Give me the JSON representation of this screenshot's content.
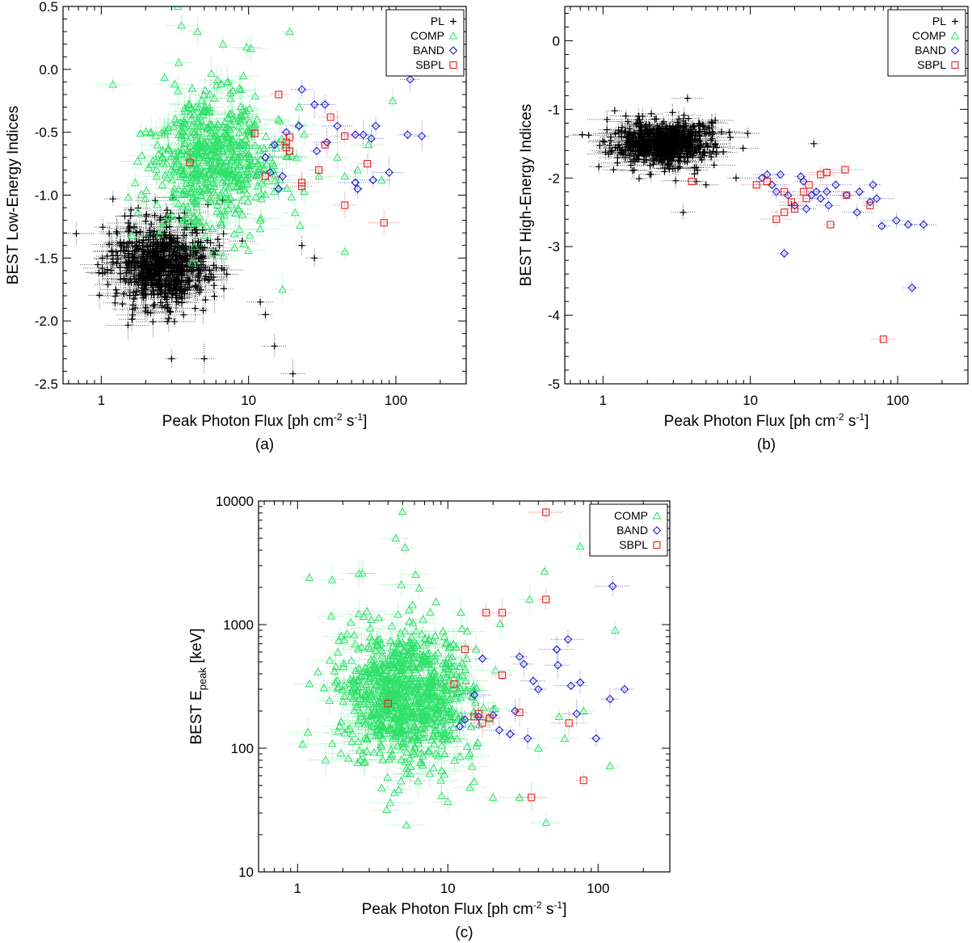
{
  "panels": [
    {
      "id": "a",
      "caption": "(a)",
      "xlabel": {
        "main": "Peak Photon Flux [ph cm",
        "sup1": "-2",
        "mid": " s",
        "sup2": "-1",
        "end": "]"
      },
      "ylabel": {
        "main": "BEST Low-Energy Indices",
        "sub": ""
      },
      "xscale": "log",
      "xlim": [
        0.55,
        300
      ],
      "yscale": "linear",
      "ylim": [
        -2.5,
        0.5
      ],
      "xticks": [
        {
          "v": 1,
          "label": "1"
        },
        {
          "v": 10,
          "label": "10"
        },
        {
          "v": 100,
          "label": "100"
        }
      ],
      "yticks": [
        {
          "v": 0.5,
          "label": "0.5"
        },
        {
          "v": 0.0,
          "label": "0.0"
        },
        {
          "v": -0.5,
          "label": "-0.5"
        },
        {
          "v": -1.0,
          "label": "-1.0"
        },
        {
          "v": -1.5,
          "label": "-1.5"
        },
        {
          "v": -2.0,
          "label": "-2.0"
        },
        {
          "v": -2.5,
          "label": "-2.5"
        }
      ],
      "legend": [
        "PL",
        "COMP",
        "BAND",
        "SBPL"
      ]
    },
    {
      "id": "b",
      "caption": "(b)",
      "xlabel": {
        "main": "Peak Photon Flux [ph cm",
        "sup1": "-2",
        "mid": " s",
        "sup2": "-1",
        "end": "]"
      },
      "ylabel": {
        "main": "BEST High-Energy Indices",
        "sub": ""
      },
      "xscale": "log",
      "xlim": [
        0.55,
        300
      ],
      "yscale": "linear",
      "ylim": [
        -5.0,
        0.5
      ],
      "xticks": [
        {
          "v": 1,
          "label": "1"
        },
        {
          "v": 10,
          "label": "10"
        },
        {
          "v": 100,
          "label": "100"
        }
      ],
      "yticks": [
        {
          "v": 0,
          "label": "0"
        },
        {
          "v": -1,
          "label": "-1"
        },
        {
          "v": -2,
          "label": "-2"
        },
        {
          "v": -3,
          "label": "-3"
        },
        {
          "v": -4,
          "label": "-4"
        },
        {
          "v": -5,
          "label": "-5"
        }
      ],
      "legend": [
        "PL",
        "COMP",
        "BAND",
        "SBPL"
      ]
    },
    {
      "id": "c",
      "caption": "(c)",
      "xlabel": {
        "main": "Peak Photon Flux [ph cm",
        "sup1": "-2",
        "mid": " s",
        "sup2": "-1",
        "end": "]"
      },
      "ylabel": {
        "main": "BEST E",
        "sub": "peak",
        "end": " [keV]"
      },
      "xscale": "log",
      "xlim": [
        0.55,
        300
      ],
      "yscale": "log",
      "ylim": [
        10,
        10000
      ],
      "xticks": [
        {
          "v": 1,
          "label": "1"
        },
        {
          "v": 10,
          "label": "10"
        },
        {
          "v": 100,
          "label": "100"
        }
      ],
      "yticks": [
        {
          "v": 10,
          "label": "10"
        },
        {
          "v": 100,
          "label": "100"
        },
        {
          "v": 1000,
          "label": "1000"
        },
        {
          "v": 10000,
          "label": "10000"
        }
      ],
      "legend": [
        "COMP",
        "BAND",
        "SBPL"
      ]
    }
  ],
  "legend_styles": {
    "PL": {
      "marker": "+",
      "color": "#000000"
    },
    "COMP": {
      "marker": "triangle",
      "color": "#2ee06a"
    },
    "BAND": {
      "marker": "diamond",
      "color": "#1a1ad0"
    },
    "SBPL": {
      "marker": "square",
      "color": "#e02020"
    }
  },
  "chart_data": [
    {
      "type": "scatter",
      "title": "(a)",
      "xlabel": "Peak Photon Flux [ph cm^-2 s^-1]",
      "ylabel": "BEST Low-Energy Indices",
      "xscale": "log",
      "xlim": [
        0.55,
        300
      ],
      "ylim": [
        -2.5,
        0.5
      ],
      "series": [
        {
          "name": "PL",
          "marker": "+",
          "color": "#000000",
          "clusters": [
            {
              "n": 650,
              "x_logmean": 0.42,
              "x_logsd": 0.17,
              "y_mean": -1.55,
              "y_sd": 0.17,
              "seed": 11
            }
          ],
          "points": [
            [
              1.2,
              -1.03
            ],
            [
              20,
              -2.42
            ],
            [
              15,
              -2.2
            ],
            [
              23,
              -1.4
            ],
            [
              28,
              -1.5
            ],
            [
              12,
              -1.85
            ],
            [
              13,
              -1.95
            ],
            [
              5,
              -2.3
            ],
            [
              3,
              -2.3
            ]
          ]
        },
        {
          "name": "COMP",
          "marker": "triangle",
          "color": "#2ee06a",
          "clusters": [
            {
              "n": 520,
              "x_logmean": 0.75,
              "x_logsd": 0.21,
              "y_mean": -0.72,
              "y_sd": 0.27,
              "seed": 23
            }
          ],
          "points": [
            [
              1.2,
              -0.12
            ],
            [
              3.5,
              0.35
            ],
            [
              3.3,
              0.5
            ],
            [
              4.5,
              0.3
            ],
            [
              19,
              0.3
            ],
            [
              22,
              -0.3
            ],
            [
              45,
              -0.85
            ],
            [
              80,
              -0.88
            ],
            [
              95,
              -0.25
            ],
            [
              45,
              -1.45
            ],
            [
              17,
              -1.75
            ],
            [
              12,
              -1.2
            ],
            [
              30,
              -0.85
            ],
            [
              55,
              -0.8
            ],
            [
              65,
              -0.6
            ],
            [
              40,
              -0.7
            ]
          ]
        },
        {
          "name": "BAND",
          "marker": "diamond",
          "color": "#1a1ad0",
          "points": [
            [
              23,
              -0.16
            ],
            [
              28,
              -0.28
            ],
            [
              33,
              -0.28
            ],
            [
              40,
              -0.45
            ],
            [
              53,
              -0.52
            ],
            [
              60,
              -0.52
            ],
            [
              68,
              -0.55
            ],
            [
              73,
              -0.45
            ],
            [
              125,
              -0.08
            ],
            [
              120,
              -0.52
            ],
            [
              150,
              -0.53
            ],
            [
              90,
              -0.82
            ],
            [
              70,
              -0.88
            ],
            [
              55,
              -0.95
            ],
            [
              53,
              -0.9
            ],
            [
              17,
              -0.85
            ],
            [
              16,
              -0.95
            ],
            [
              14,
              -0.82
            ],
            [
              13,
              -0.7
            ],
            [
              15,
              -0.6
            ],
            [
              22,
              -0.45
            ],
            [
              29,
              -0.65
            ],
            [
              34,
              -0.58
            ],
            [
              18,
              -0.5
            ]
          ]
        },
        {
          "name": "SBPL",
          "marker": "square",
          "color": "#e02020",
          "points": [
            [
              4,
              -0.74
            ],
            [
              11,
              -0.51
            ],
            [
              16,
              -0.2
            ],
            [
              18,
              -0.58
            ],
            [
              19,
              -0.54
            ],
            [
              19,
              -0.65
            ],
            [
              18,
              -0.62
            ],
            [
              23,
              -0.9
            ],
            [
              23,
              -0.93
            ],
            [
              30,
              -0.8
            ],
            [
              33,
              -0.6
            ],
            [
              36,
              -0.38
            ],
            [
              45,
              -0.53
            ],
            [
              45,
              -1.08
            ],
            [
              64,
              -0.75
            ],
            [
              83,
              -1.22
            ],
            [
              13,
              -0.85
            ]
          ]
        }
      ]
    },
    {
      "type": "scatter",
      "title": "(b)",
      "xlabel": "Peak Photon Flux [ph cm^-2 s^-1]",
      "ylabel": "BEST High-Energy Indices",
      "xscale": "log",
      "xlim": [
        0.55,
        300
      ],
      "ylim": [
        -5.0,
        0.5
      ],
      "series": [
        {
          "name": "PL",
          "marker": "+",
          "color": "#000000",
          "clusters": [
            {
              "n": 650,
              "x_logmean": 0.42,
              "x_logsd": 0.17,
              "y_mean": -1.5,
              "y_sd": 0.17,
              "seed": 31
            }
          ],
          "points": [
            [
              1.2,
              -1.02
            ],
            [
              3.5,
              -2.5
            ],
            [
              19,
              -2.4
            ],
            [
              27,
              -1.5
            ],
            [
              8,
              -2.0
            ],
            [
              5,
              -2.1
            ]
          ]
        },
        {
          "name": "BAND",
          "marker": "diamond",
          "color": "#1a1ad0",
          "points": [
            [
              12,
              -2.0
            ],
            [
              13,
              -1.95
            ],
            [
              14,
              -2.1
            ],
            [
              15,
              -2.2
            ],
            [
              16,
              -1.95
            ],
            [
              17,
              -3.1
            ],
            [
              18,
              -2.25
            ],
            [
              20,
              -2.4
            ],
            [
              22,
              -1.98
            ],
            [
              23,
              -2.05
            ],
            [
              24,
              -2.45
            ],
            [
              26,
              -2.25
            ],
            [
              28,
              -2.2
            ],
            [
              30,
              -2.3
            ],
            [
              33,
              -2.2
            ],
            [
              34,
              -2.4
            ],
            [
              38,
              -2.1
            ],
            [
              45,
              -2.25
            ],
            [
              53,
              -2.5
            ],
            [
              55,
              -2.2
            ],
            [
              65,
              -2.35
            ],
            [
              68,
              -2.1
            ],
            [
              72,
              -2.3
            ],
            [
              78,
              -2.7
            ],
            [
              98,
              -2.62
            ],
            [
              118,
              -2.68
            ],
            [
              150,
              -2.68
            ],
            [
              125,
              -3.6
            ]
          ]
        },
        {
          "name": "SBPL",
          "marker": "square",
          "color": "#e02020",
          "points": [
            [
              4,
              -2.05
            ],
            [
              11,
              -2.1
            ],
            [
              13,
              -2.05
            ],
            [
              15,
              -2.6
            ],
            [
              17,
              -2.5
            ],
            [
              17,
              -2.2
            ],
            [
              19,
              -2.35
            ],
            [
              20,
              -2.45
            ],
            [
              23,
              -2.2
            ],
            [
              24,
              -2.3
            ],
            [
              25,
              -2.1
            ],
            [
              30,
              -1.95
            ],
            [
              33,
              -1.92
            ],
            [
              35,
              -2.68
            ],
            [
              44,
              -1.88
            ],
            [
              45,
              -2.25
            ],
            [
              65,
              -2.4
            ],
            [
              80,
              -4.35
            ]
          ]
        }
      ]
    },
    {
      "type": "scatter",
      "title": "(c)",
      "xlabel": "Peak Photon Flux [ph cm^-2 s^-1]",
      "ylabel": "BEST E_peak [keV]",
      "xscale": "log",
      "yscale": "log",
      "xlim": [
        0.55,
        300
      ],
      "ylim": [
        10,
        10000
      ],
      "series": [
        {
          "name": "COMP",
          "marker": "triangle",
          "color": "#2ee06a",
          "clusters": [
            {
              "n": 780,
              "x_logmean": 0.72,
              "x_logsd": 0.22,
              "y_logmean": 2.42,
              "y_logsd": 0.3,
              "seed": 47
            }
          ],
          "points": [
            [
              1.2,
              2400
            ],
            [
              1.7,
              2300
            ],
            [
              2.7,
              2600
            ],
            [
              5,
              8200
            ],
            [
              5.2,
              4200
            ],
            [
              4.5,
              5000
            ],
            [
              44,
              2700
            ],
            [
              76,
              4300
            ],
            [
              130,
              900
            ],
            [
              120,
              72
            ],
            [
              45,
              25
            ],
            [
              30,
              40
            ],
            [
              10,
              37
            ],
            [
              20,
              40
            ],
            [
              14,
              48
            ],
            [
              9,
              55
            ],
            [
              60,
              120
            ],
            [
              80,
              200
            ],
            [
              55,
              180
            ],
            [
              40,
              100
            ],
            [
              35,
              1600
            ]
          ]
        },
        {
          "name": "BAND",
          "marker": "diamond",
          "color": "#1a1ad0",
          "points": [
            [
              12,
              150
            ],
            [
              13,
              170
            ],
            [
              15,
              270
            ],
            [
              16,
              180
            ],
            [
              17,
              530
            ],
            [
              20,
              185
            ],
            [
              22,
              140
            ],
            [
              26,
              130
            ],
            [
              28,
              200
            ],
            [
              30,
              550
            ],
            [
              32,
              480
            ],
            [
              34,
              120
            ],
            [
              37,
              350
            ],
            [
              40,
              300
            ],
            [
              53,
              630
            ],
            [
              54,
              470
            ],
            [
              63,
              760
            ],
            [
              66,
              320
            ],
            [
              72,
              190
            ],
            [
              76,
              340
            ],
            [
              97,
              120
            ],
            [
              120,
              250
            ],
            [
              125,
              2050
            ],
            [
              150,
              300
            ]
          ]
        },
        {
          "name": "SBPL",
          "marker": "square",
          "color": "#e02020",
          "points": [
            [
              4,
              230
            ],
            [
              11,
              330
            ],
            [
              13,
              630
            ],
            [
              15,
              180
            ],
            [
              16,
              190
            ],
            [
              17,
              160
            ],
            [
              19,
              175
            ],
            [
              18,
              1250
            ],
            [
              23,
              1250
            ],
            [
              23,
              390
            ],
            [
              30,
              195
            ],
            [
              36,
              40
            ],
            [
              45,
              8100
            ],
            [
              45,
              1600
            ],
            [
              64,
              160
            ],
            [
              80,
              55
            ]
          ]
        }
      ]
    }
  ]
}
